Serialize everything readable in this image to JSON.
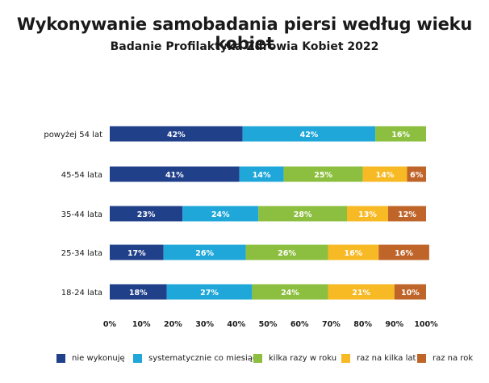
{
  "header": {
    "title": "Wykonywanie samobadania piersi według wieku kobiet",
    "subtitle": "Badanie Profilaktyka Zdrowia Kobiet 2022"
  },
  "colors": {
    "nie wykonuję": "#21408a",
    "systematycznie co miesiąc": "#1fa7d9",
    "kilka razy w roku": "#8cbf3f",
    "raz na kilka lat": "#f7b924",
    "raz na rok": "#c0652a"
  },
  "chart_data": {
    "type": "bar",
    "orientation": "horizontal",
    "stacked": true,
    "title": "Wykonywanie samobadania piersi według wieku kobiet",
    "subtitle": "Badanie Profilaktyka Zdrowia Kobiet 2022",
    "categories": [
      "powyżej 54 lat",
      "45-54 lata",
      "35-44 lata",
      "25-34 lata",
      "18-24 lata"
    ],
    "x_ticks": [
      "0%",
      "10%",
      "20%",
      "30%",
      "40%",
      "50%",
      "60%",
      "70%",
      "80%",
      "90%",
      "100%"
    ],
    "xlim": [
      0,
      100
    ],
    "series": [
      {
        "name": "nie wykonuję",
        "values": [
          42,
          41,
          23,
          17,
          18
        ]
      },
      {
        "name": "systematycznie co miesiąc",
        "values": [
          42,
          14,
          24,
          26,
          27
        ]
      },
      {
        "name": "kilka razy w roku",
        "values": [
          16,
          25,
          28,
          26,
          24
        ]
      },
      {
        "name": "raz na kilka lat",
        "values": [
          0,
          14,
          13,
          16,
          21
        ]
      },
      {
        "name": "raz na rok",
        "values": [
          0,
          6,
          12,
          16,
          10
        ]
      }
    ],
    "legend": {
      "placement": "bottom",
      "order": [
        "nie wykonuję",
        "systematycznie co miesiąc",
        "kilka razy w roku",
        "raz na kilka lat",
        "raz na rok"
      ]
    },
    "grid": false
  }
}
